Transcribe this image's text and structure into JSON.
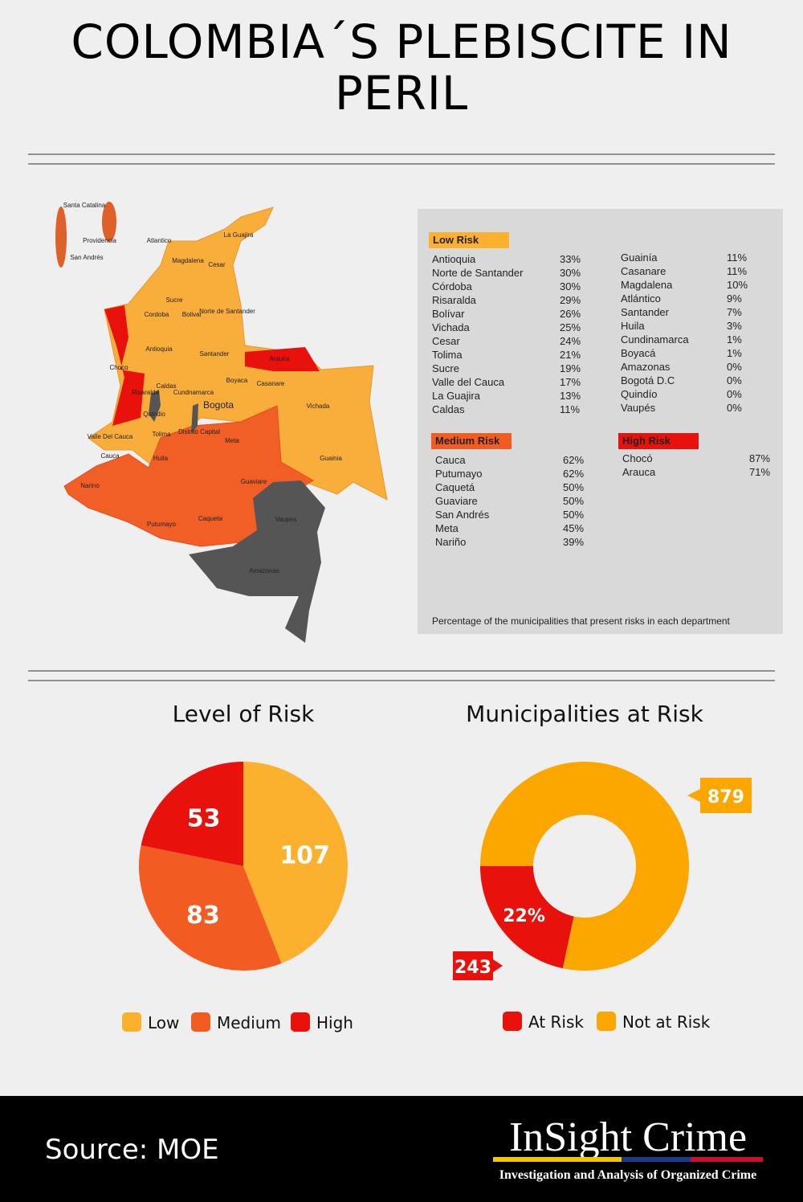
{
  "title": "COLOMBIA´S PLEBISCITE IN PERIL",
  "map": {
    "labels": [
      "Santa Catalina",
      "Providencia",
      "San Andrés",
      "Atlantico",
      "La Guajira",
      "Magdalena",
      "Cesar",
      "Sucre",
      "Norte de Santander",
      "Cordoba",
      "Bolivar",
      "Antioquia",
      "Santander",
      "Arauca",
      "Choco",
      "Risaralda",
      "Caldas",
      "Boyaca",
      "Casanare",
      "Cundnamarca",
      "Bogota",
      "Quindio",
      "Distrito Capital",
      "Vichada",
      "Valle Del Cauca",
      "Tolima",
      "Meta",
      "Cauca",
      "Huila",
      "Guainia",
      "Narino",
      "Guaviare",
      "Putumayo",
      "Caqueta",
      "Vaupes",
      "Amazonas"
    ]
  },
  "risk_table": {
    "low": {
      "heading": "Low Risk",
      "rows": [
        [
          "Antioquia",
          "33%"
        ],
        [
          "Norte de Santander",
          "30%"
        ],
        [
          "Córdoba",
          "30%"
        ],
        [
          "Risaralda",
          "29%"
        ],
        [
          "Bolívar",
          "26%"
        ],
        [
          "Vichada",
          "25%"
        ],
        [
          "Cesar",
          "24%"
        ],
        [
          "Tolima",
          "21%"
        ],
        [
          "Sucre",
          "19%"
        ],
        [
          "Valle del Cauca",
          "17%"
        ],
        [
          "La Guajira",
          "13%"
        ],
        [
          "Caldas",
          "11%"
        ],
        [
          "Guainía",
          "11%"
        ],
        [
          "Casanare",
          "11%"
        ],
        [
          "Magdalena",
          "10%"
        ],
        [
          "Atlántico",
          "9%"
        ],
        [
          "Santander",
          "7%"
        ],
        [
          "Huila",
          "3%"
        ],
        [
          "Cundinamarca",
          "1%"
        ],
        [
          "Boyacá",
          "1%"
        ],
        [
          "Amazonas",
          "0%"
        ],
        [
          "Bogotá D.C",
          "0%"
        ],
        [
          "Quindío",
          "0%"
        ],
        [
          "Vaupés",
          "0%"
        ]
      ]
    },
    "medium": {
      "heading": "Medium Risk",
      "rows": [
        [
          "Cauca",
          "62%"
        ],
        [
          "Putumayo",
          "62%"
        ],
        [
          "Caquetá",
          "50%"
        ],
        [
          "Guaviare",
          "50%"
        ],
        [
          "San Andrés",
          "50%"
        ],
        [
          "Meta",
          "45%"
        ],
        [
          "Nariño",
          "39%"
        ]
      ]
    },
    "high": {
      "heading": "High Risk",
      "rows": [
        [
          "Chocó",
          "87%"
        ],
        [
          "Arauca",
          "71%"
        ]
      ]
    },
    "note": "Percentage of the municipalities that present risks in each department"
  },
  "chart_data": [
    {
      "type": "pie",
      "title": "Level of Risk",
      "categories": [
        "Low",
        "Medium",
        "High"
      ],
      "values": [
        107,
        83,
        53
      ],
      "colors": [
        "#fbb12e",
        "#f25c22",
        "#e8110c"
      ]
    },
    {
      "type": "donut",
      "title": "Municipalities at Risk",
      "categories": [
        "At Risk",
        "Not at Risk"
      ],
      "values": [
        243,
        879
      ],
      "colors": [
        "#e8110c",
        "#fca600"
      ],
      "annotations": [
        "22%"
      ]
    }
  ],
  "footer": {
    "source": "Source: MOE",
    "brand": "InSight Crime",
    "tagline": "Investigation and Analysis of Organized Crime"
  }
}
